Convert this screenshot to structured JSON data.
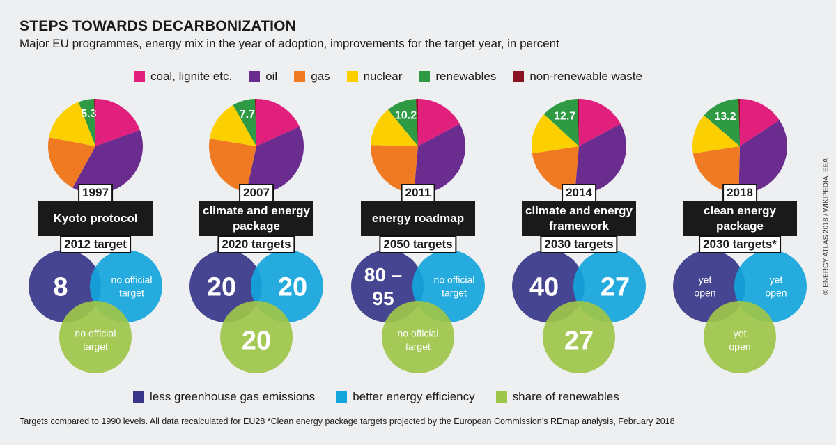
{
  "header": {
    "title": "STEPS TOWARDS DECARBONIZATION",
    "subtitle": "Major EU programmes, energy mix in the year of adoption, improvements for the target year, in percent"
  },
  "fuel_legend": [
    {
      "label": "coal, lignite etc.",
      "color": "#e0207c"
    },
    {
      "label": "oil",
      "color": "#6b2c8f"
    },
    {
      "label": "gas",
      "color": "#ef7a22"
    },
    {
      "label": "nuclear",
      "color": "#fcd000"
    },
    {
      "label": "renewables",
      "color": "#2e9a43"
    },
    {
      "label": "non-renewable waste",
      "color": "#8a1323"
    }
  ],
  "target_legend": [
    {
      "label": "less greenhouse gas emissions",
      "color": "#373689"
    },
    {
      "label": "better energy efficiency",
      "color": "#14a5dc"
    },
    {
      "label": "share of renewables",
      "color": "#9ec649"
    }
  ],
  "chart_data": [
    {
      "type": "pie",
      "year": "1997",
      "programme": "Kyoto protocol",
      "target_label": "2012 target",
      "slices": [
        {
          "fuel": "coal, lignite etc.",
          "value": 19.5
        },
        {
          "fuel": "oil",
          "value": 38.5
        },
        {
          "fuel": "gas",
          "value": 20
        },
        {
          "fuel": "nuclear",
          "value": 16.2
        },
        {
          "fuel": "renewables",
          "value": 5.3,
          "label": "5.3"
        },
        {
          "fuel": "non-renewable waste",
          "value": 0.5
        }
      ],
      "targets": {
        "emissions": {
          "text": "8",
          "numeric": true
        },
        "efficiency": {
          "text": "no official target",
          "numeric": false
        },
        "renewables": {
          "text": "no official target",
          "numeric": false
        }
      }
    },
    {
      "type": "pie",
      "year": "2007",
      "programme": "climate and energy package",
      "target_label": "2020 targets",
      "slices": [
        {
          "fuel": "coal, lignite etc.",
          "value": 18.2
        },
        {
          "fuel": "oil",
          "value": 35.2
        },
        {
          "fuel": "gas",
          "value": 24.2
        },
        {
          "fuel": "nuclear",
          "value": 14.2
        },
        {
          "fuel": "renewables",
          "value": 7.7,
          "label": "7.7"
        },
        {
          "fuel": "non-renewable waste",
          "value": 0.5
        }
      ],
      "targets": {
        "emissions": {
          "text": "20",
          "numeric": true
        },
        "efficiency": {
          "text": "20",
          "numeric": true
        },
        "renewables": {
          "text": "20",
          "numeric": true
        }
      }
    },
    {
      "type": "pie",
      "year": "2011",
      "programme": "energy roadmap",
      "target_label": "2050 targets",
      "slices": [
        {
          "fuel": "coal, lignite etc.",
          "value": 17.2
        },
        {
          "fuel": "oil",
          "value": 34.2
        },
        {
          "fuel": "gas",
          "value": 24
        },
        {
          "fuel": "nuclear",
          "value": 13.7
        },
        {
          "fuel": "renewables",
          "value": 10.2,
          "label": "10.2"
        },
        {
          "fuel": "non-renewable waste",
          "value": 0.7
        }
      ],
      "targets": {
        "emissions": {
          "text": "80 – 95",
          "numeric": true
        },
        "efficiency": {
          "text": "no official target",
          "numeric": false
        },
        "renewables": {
          "text": "no official target",
          "numeric": false
        }
      }
    },
    {
      "type": "pie",
      "year": "2014",
      "programme": "climate and energy framework",
      "target_label": "2030 targets",
      "slices": [
        {
          "fuel": "coal, lignite etc.",
          "value": 17.2
        },
        {
          "fuel": "oil",
          "value": 34.2
        },
        {
          "fuel": "gas",
          "value": 21.2
        },
        {
          "fuel": "nuclear",
          "value": 14.2
        },
        {
          "fuel": "renewables",
          "value": 12.7,
          "label": "12.7"
        },
        {
          "fuel": "non-renewable waste",
          "value": 0.5
        }
      ],
      "targets": {
        "emissions": {
          "text": "40",
          "numeric": true
        },
        "efficiency": {
          "text": "27",
          "numeric": true
        },
        "renewables": {
          "text": "27",
          "numeric": true
        }
      }
    },
    {
      "type": "pie",
      "year": "2018",
      "programme": "clean energy package",
      "target_label": "2030 targets*",
      "slices": [
        {
          "fuel": "coal, lignite etc.",
          "value": 15.7
        },
        {
          "fuel": "oil",
          "value": 34.7
        },
        {
          "fuel": "gas",
          "value": 22.2
        },
        {
          "fuel": "nuclear",
          "value": 13.7
        },
        {
          "fuel": "renewables",
          "value": 13.2,
          "label": "13.2"
        },
        {
          "fuel": "non-renewable waste",
          "value": 0.5
        }
      ],
      "targets": {
        "emissions": {
          "text": "yet open",
          "numeric": false
        },
        "efficiency": {
          "text": "yet open",
          "numeric": false
        },
        "renewables": {
          "text": "yet open",
          "numeric": false
        }
      }
    }
  ],
  "footnote": "Targets compared to 1990 levels. All data recalculated for EU28   *Clean energy package targets projected by the European Commission’s REmap analysis, February 2018",
  "credit": "© ENERGY ATLAS 2018 / WIKIPEDIA, EEA"
}
